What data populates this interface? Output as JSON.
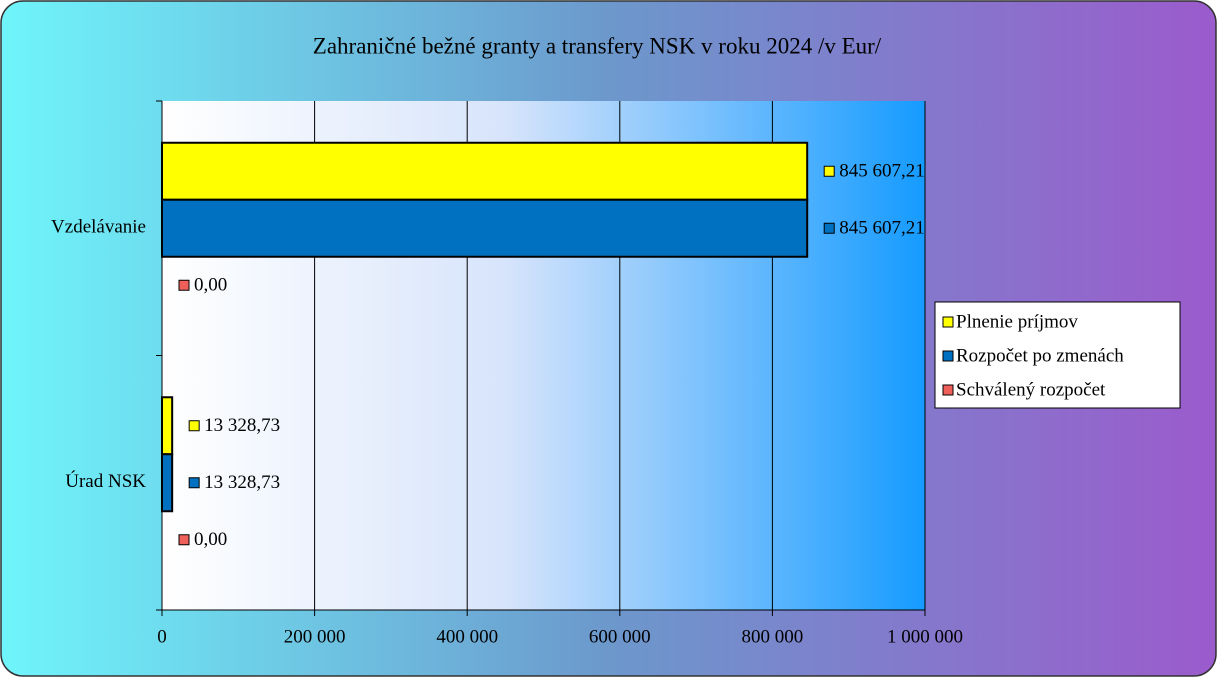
{
  "chart_data": {
    "type": "hbar",
    "title": "Zahraničné bežné granty a transfery NSK v roku 2024   /v Eur/",
    "categories": [
      "Vzdelávanie",
      "Úrad NSK"
    ],
    "series": [
      {
        "name": "Plnenie príjmov",
        "color": "#ffff00",
        "values": [
          845607.21,
          13328.73
        ],
        "value_labels": [
          "845 607,21",
          "13 328,73"
        ]
      },
      {
        "name": "Rozpočet po zmenách",
        "color": "#0070c0",
        "values": [
          845607.21,
          13328.73
        ],
        "value_labels": [
          "845 607,21",
          "13 328,73"
        ]
      },
      {
        "name": "Schválený rozpočet",
        "color": "#f0605a",
        "values": [
          0,
          0
        ],
        "value_labels": [
          "0,00",
          "0,00"
        ]
      }
    ],
    "xlim": [
      0,
      1000000
    ],
    "xticks": [
      0,
      {
        "value": 200000,
        "label": "200 000"
      },
      {
        "value": 400000,
        "label": "400 000"
      },
      {
        "value": 600000,
        "label": "600 000"
      },
      {
        "value": 800000,
        "label": "800 000"
      },
      {
        "value": 1000000,
        "label": "1 000 000"
      }
    ],
    "grid": true,
    "legend": "right"
  }
}
